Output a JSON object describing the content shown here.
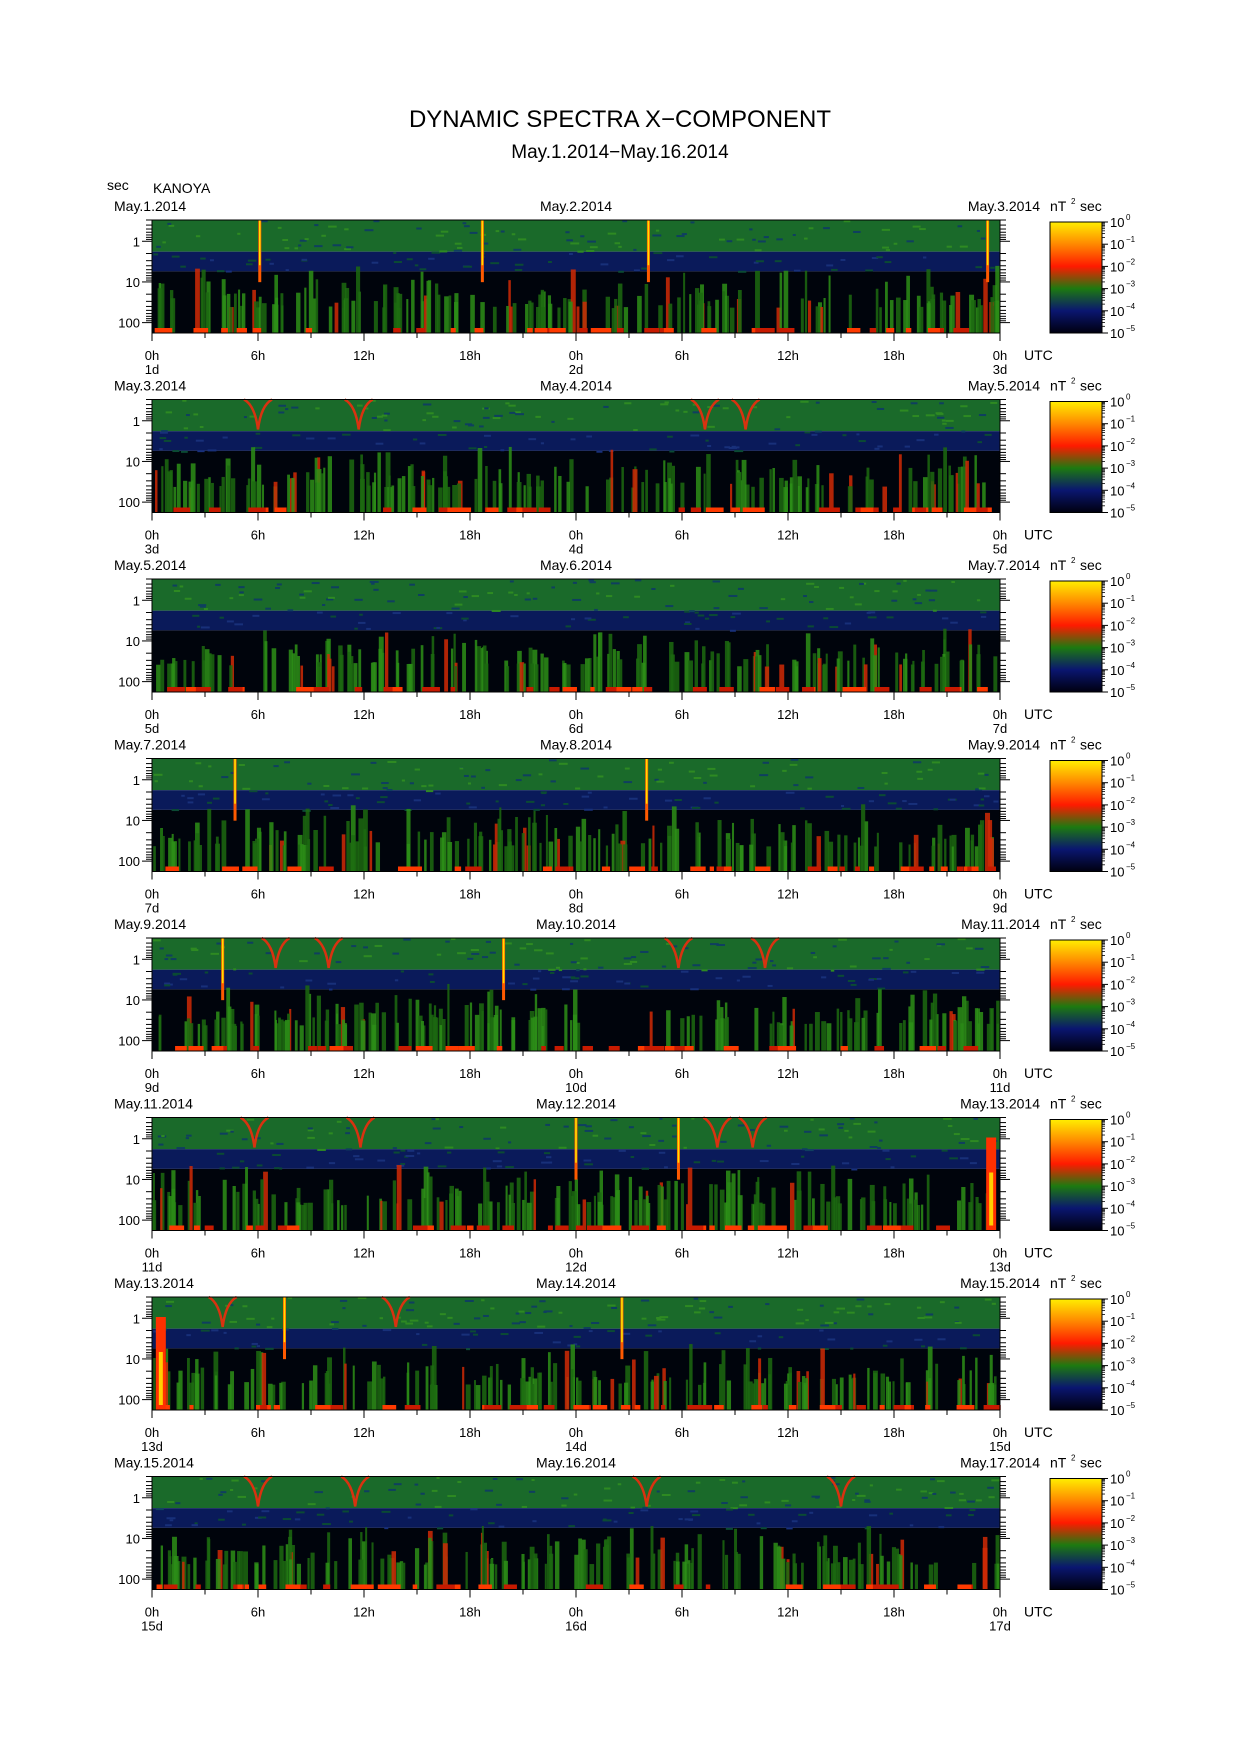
{
  "title": "DYNAMIC SPECTRA X−COMPONENT",
  "subtitle": "May.1.2014−May.16.2014",
  "y_unit": "sec",
  "station": "KANOYA",
  "chart_data": {
    "type": "heatmap",
    "description_axes": {
      "x": "time (UTC), 0h to 48h per panel",
      "y": "period (sec), log scale, reversed (small on top)",
      "color": "power nT^2 sec, log scale"
    },
    "ylim": [
      0.3,
      180
    ],
    "y_ticks": [
      "1",
      "10",
      "100"
    ],
    "y_tick_values": [
      1,
      10,
      100
    ],
    "x_ticks": [
      "0h",
      "6h",
      "12h",
      "18h",
      "0h",
      "6h",
      "12h",
      "18h",
      "0h"
    ],
    "x_tick_hours": [
      0,
      6,
      12,
      18,
      24,
      30,
      36,
      42,
      48
    ],
    "x_unit": "UTC",
    "colorbar": {
      "unit": "nT",
      "unit_sup": "2",
      "unit_suffix": "sec",
      "ticks": [
        "10",
        "10",
        "10",
        "10",
        "10",
        "10"
      ],
      "tick_exps": [
        "0",
        "−1",
        "−2",
        "−3",
        "−4",
        "−5"
      ],
      "range_log10": [
        -5,
        0
      ],
      "colors": [
        "#000010",
        "#0a1670",
        "#1d7a10",
        "#ff1a00",
        "#ff8800",
        "#ffee00"
      ]
    },
    "panels": [
      {
        "left_date": "May.1.2014",
        "mid_date": "May.2.2014",
        "right_date": "May.3.2014",
        "day_labels": [
          "1d",
          "2d",
          "3d"
        ],
        "spikes": [
          6.1,
          18.7,
          28.1,
          47.3
        ],
        "vees": [],
        "strong": []
      },
      {
        "left_date": "May.3.2014",
        "mid_date": "May.4.2014",
        "right_date": "May.5.2014",
        "day_labels": [
          "3d",
          "4d",
          "5d"
        ],
        "spikes": [],
        "vees": [
          6.0,
          11.7,
          31.3,
          33.6
        ],
        "strong": []
      },
      {
        "left_date": "May.5.2014",
        "mid_date": "May.6.2014",
        "right_date": "May.7.2014",
        "day_labels": [
          "5d",
          "6d",
          "7d"
        ],
        "spikes": [],
        "vees": [],
        "strong": []
      },
      {
        "left_date": "May.7.2014",
        "mid_date": "May.8.2014",
        "right_date": "May.9.2014",
        "day_labels": [
          "7d",
          "8d",
          "9d"
        ],
        "spikes": [
          4.7,
          28.0
        ],
        "vees": [],
        "strong": []
      },
      {
        "left_date": "May.9.2014",
        "mid_date": "May.10.2014",
        "right_date": "May.11.2014",
        "day_labels": [
          "9d",
          "10d",
          "11d"
        ],
        "spikes": [
          4.0,
          19.9
        ],
        "vees": [
          7.0,
          10.0,
          29.8,
          34.7
        ],
        "strong": []
      },
      {
        "left_date": "May.11.2014",
        "mid_date": "May.12.2014",
        "right_date": "May.13.2014",
        "day_labels": [
          "11d",
          "12d",
          "13d"
        ],
        "spikes": [
          24.0,
          29.8
        ],
        "vees": [
          5.8,
          11.8,
          34.0,
          32.0
        ],
        "strong": [
          47.5
        ]
      },
      {
        "left_date": "May.13.2014",
        "mid_date": "May.14.2014",
        "right_date": "May.15.2014",
        "day_labels": [
          "13d",
          "14d",
          "15d"
        ],
        "spikes": [
          7.5,
          26.6
        ],
        "vees": [
          4.0,
          13.8
        ],
        "strong": [
          0.5
        ]
      },
      {
        "left_date": "May.15.2014",
        "mid_date": "May.16.2014",
        "right_date": "May.17.2014",
        "day_labels": [
          "15d",
          "16d",
          "17d"
        ],
        "spikes": [],
        "vees": [
          6.0,
          11.5,
          28.0,
          39.0
        ],
        "strong": []
      }
    ]
  }
}
